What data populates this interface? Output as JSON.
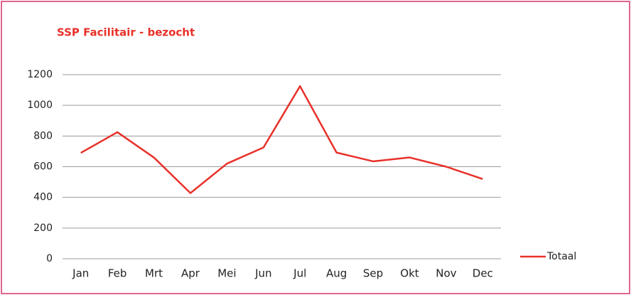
{
  "chart_data": {
    "type": "line",
    "title": "SSP Facilitair - bezocht",
    "categories": [
      "Jan",
      "Feb",
      "Mrt",
      "Apr",
      "Mei",
      "Jun",
      "Jul",
      "Aug",
      "Sep",
      "Okt",
      "Nov",
      "Dec"
    ],
    "series": [
      {
        "name": "Totaal",
        "color": "#e8312a",
        "values": [
          690,
          825,
          660,
          428,
          620,
          725,
          1125,
          692,
          635,
          660,
          600,
          520
        ]
      }
    ],
    "ylim": [
      0,
      1200
    ],
    "yticks": [
      0,
      200,
      400,
      600,
      800,
      1000,
      1200
    ],
    "grid": true,
    "legend": "right"
  }
}
